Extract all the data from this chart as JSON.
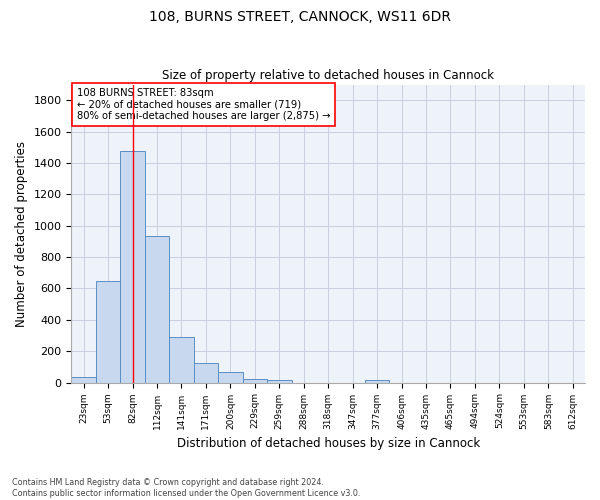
{
  "title1": "108, BURNS STREET, CANNOCK, WS11 6DR",
  "title2": "Size of property relative to detached houses in Cannock",
  "xlabel": "Distribution of detached houses by size in Cannock",
  "ylabel": "Number of detached properties",
  "categories": [
    "23sqm",
    "53sqm",
    "82sqm",
    "112sqm",
    "141sqm",
    "171sqm",
    "200sqm",
    "229sqm",
    "259sqm",
    "288sqm",
    "318sqm",
    "347sqm",
    "377sqm",
    "406sqm",
    "435sqm",
    "465sqm",
    "494sqm",
    "524sqm",
    "553sqm",
    "583sqm",
    "612sqm"
  ],
  "values": [
    38,
    648,
    1475,
    935,
    290,
    125,
    65,
    22,
    15,
    0,
    0,
    0,
    14,
    0,
    0,
    0,
    0,
    0,
    0,
    0,
    0
  ],
  "bar_color": "#c8d9ef",
  "bar_edge_color": "#5b8ec4",
  "property_line_x": 2.0,
  "annotation_text1": "108 BURNS STREET: 83sqm",
  "annotation_text2": "← 20% of detached houses are smaller (719)",
  "annotation_text3": "80% of semi-detached houses are larger (2,875) →",
  "footer1": "Contains HM Land Registry data © Crown copyright and database right 2024.",
  "footer2": "Contains public sector information licensed under the Open Government Licence v3.0.",
  "ylim": [
    0,
    1900
  ],
  "yticks": [
    0,
    200,
    400,
    600,
    800,
    1000,
    1200,
    1400,
    1600,
    1800
  ],
  "bg_color": "#eef2f9",
  "grid_color": "#c8cedc"
}
